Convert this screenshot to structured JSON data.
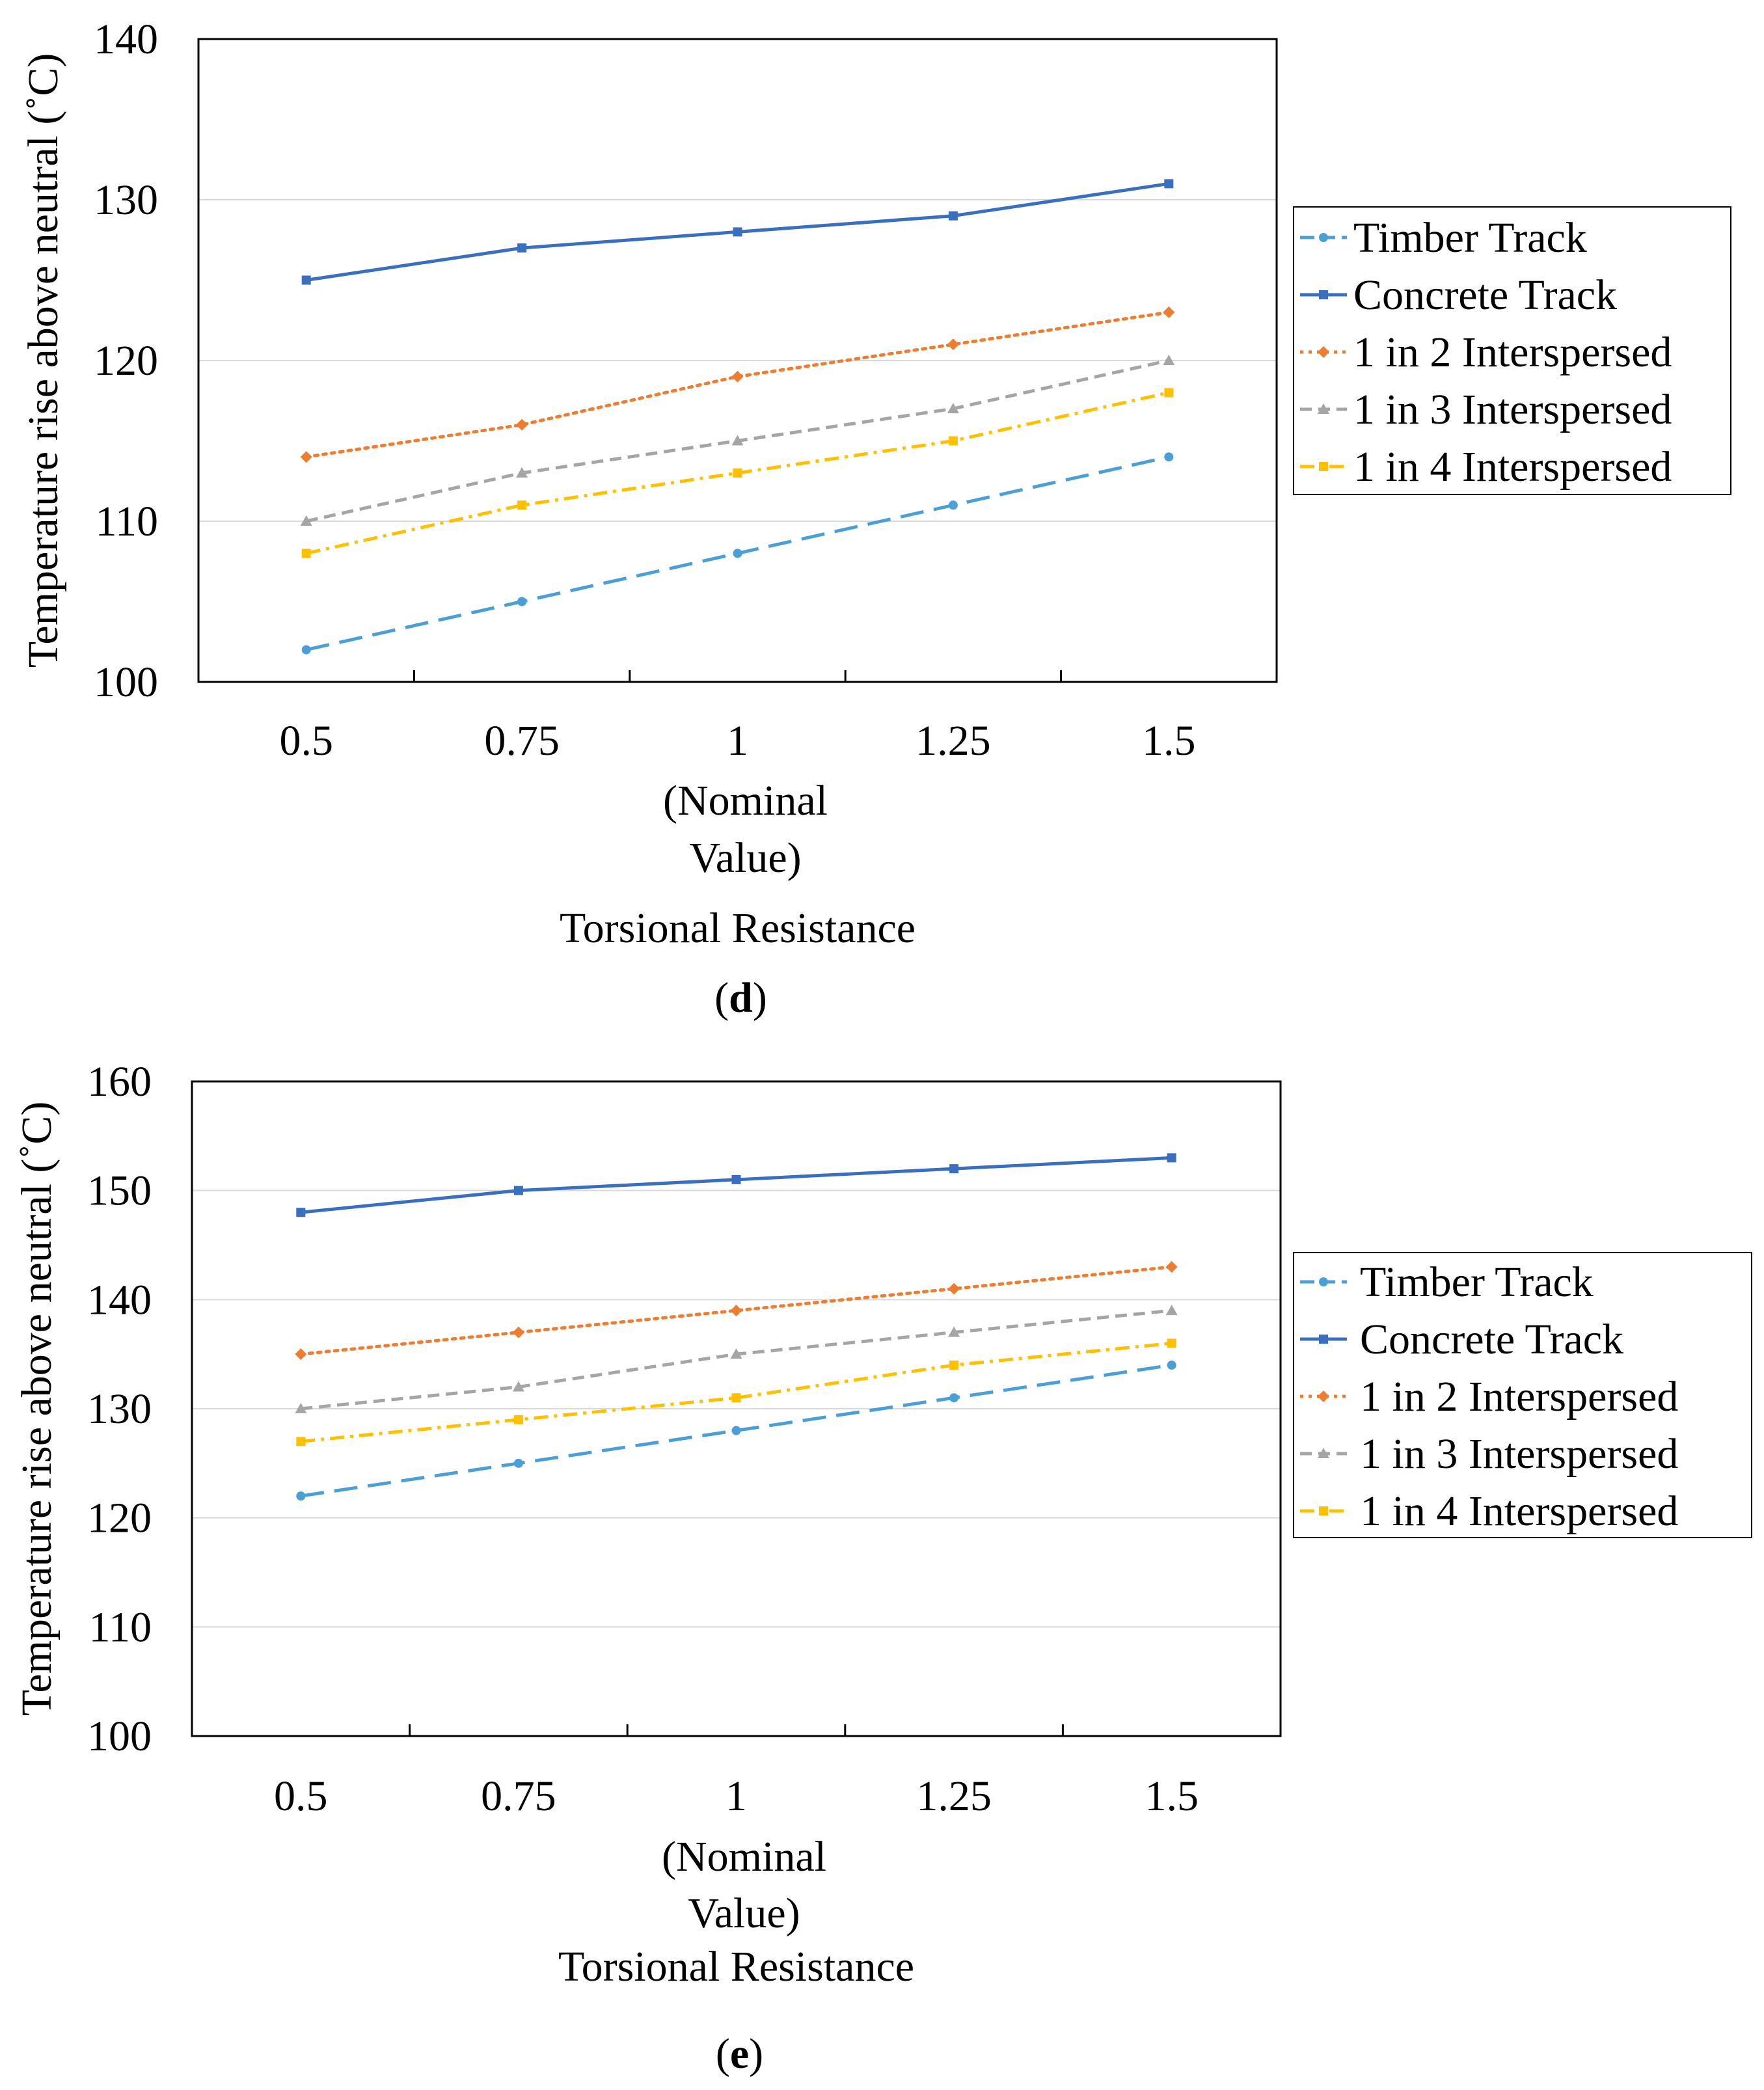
{
  "chart_data": [
    {
      "id": "d",
      "type": "line",
      "panel_label": "d",
      "categories": [
        "0.5",
        "0.75",
        "1",
        "1.25",
        "1.5"
      ],
      "category_annotation": {
        "category": "1",
        "lines": [
          "(Nominal",
          "Value)"
        ]
      },
      "xlabel": "Torsional Resistance",
      "ylabel": "Temperature rise above neutral (˚C)",
      "ylim": [
        100,
        140
      ],
      "yticks": [
        100,
        110,
        120,
        130,
        140
      ],
      "grid": true,
      "legend_position": "right",
      "series": [
        {
          "name": "Timber Track",
          "values": [
            102,
            105,
            108,
            111,
            114
          ]
        },
        {
          "name": "Concrete Track",
          "values": [
            125,
            127,
            128,
            129,
            131
          ]
        },
        {
          "name": "1 in 2 Interspersed",
          "values": [
            114,
            116,
            119,
            121,
            123
          ]
        },
        {
          "name": "1 in 3 Interspersed",
          "values": [
            110,
            113,
            115,
            117,
            120
          ]
        },
        {
          "name": "1 in 4 Interspersed",
          "values": [
            108,
            111,
            113,
            115,
            118
          ]
        }
      ]
    },
    {
      "id": "e",
      "type": "line",
      "panel_label": "e",
      "categories": [
        "0.5",
        "0.75",
        "1",
        "1.25",
        "1.5"
      ],
      "category_annotation": {
        "category": "1",
        "lines": [
          "(Nominal",
          "Value)"
        ]
      },
      "xlabel": "Torsional Resistance",
      "ylabel": "Temperature rise above neutral (˚C)",
      "ylim": [
        100,
        160
      ],
      "yticks": [
        100,
        110,
        120,
        130,
        140,
        150,
        160
      ],
      "grid": true,
      "legend_position": "right",
      "series": [
        {
          "name": "Timber Track",
          "values": [
            122,
            125,
            128,
            131,
            134
          ]
        },
        {
          "name": "Concrete Track",
          "values": [
            148,
            150,
            151,
            152,
            153
          ]
        },
        {
          "name": "1 in 2 Interspersed",
          "values": [
            135,
            137,
            139,
            141,
            143
          ]
        },
        {
          "name": "1 in 3 Interspersed",
          "values": [
            130,
            132,
            135,
            137,
            139
          ]
        },
        {
          "name": "1 in 4 Interspersed",
          "values": [
            127,
            129,
            131,
            134,
            136
          ]
        }
      ]
    }
  ],
  "series_styles": [
    {
      "color": "#4A9FD6",
      "dash": "long-dash",
      "marker": "circle"
    },
    {
      "color": "#3A6FC0",
      "dash": "solid",
      "marker": "square"
    },
    {
      "color": "#ED7D31",
      "dash": "dotted",
      "marker": "diamond"
    },
    {
      "color": "#A5A5A5",
      "dash": "dashed",
      "marker": "triangle"
    },
    {
      "color": "#FFC000",
      "dash": "dash-dot",
      "marker": "square"
    }
  ]
}
